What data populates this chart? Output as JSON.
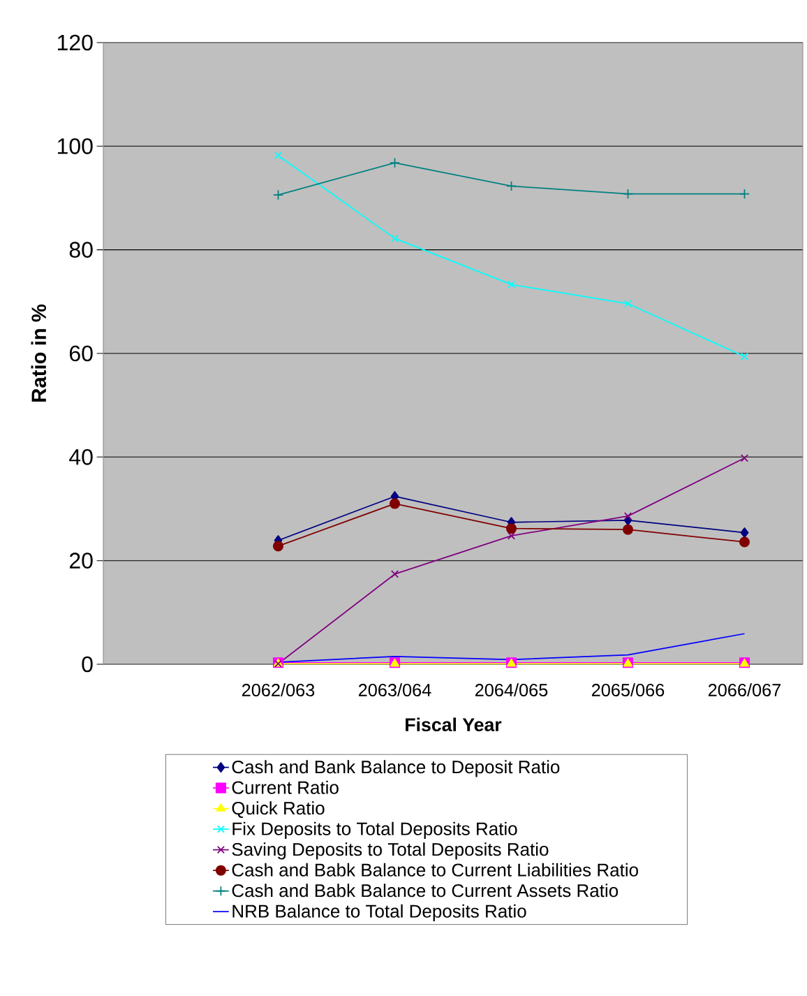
{
  "chart_data": {
    "type": "line",
    "xlabel": "Fiscal Year",
    "ylabel": "Ratio in %",
    "categories": [
      null,
      "2062/063",
      "2063/064",
      "2064/065",
      "2065/066",
      "2066/067"
    ],
    "ylim": [
      0,
      120
    ],
    "yticks": [
      0,
      20,
      40,
      60,
      80,
      100,
      120
    ],
    "grid": "y",
    "legend": "bottom",
    "series": [
      {
        "name": "Cash and Bank Balance to Deposit Ratio",
        "color": "#000080",
        "marker": "diamond",
        "values": [
          null,
          23.9,
          32.4,
          27.4,
          27.8,
          25.4
        ]
      },
      {
        "name": "Current Ratio",
        "color": "#ff00ff",
        "marker": "square",
        "values": [
          null,
          0.3,
          0.3,
          0.3,
          0.3,
          0.3
        ]
      },
      {
        "name": "Quick Ratio",
        "color": "#ffff00",
        "marker": "triangle",
        "values": [
          null,
          0.1,
          0.1,
          0.1,
          0.1,
          0.1
        ]
      },
      {
        "name": "Fix Deposits to Total Deposits Ratio",
        "color": "#00ffff",
        "marker": "cross",
        "values": [
          null,
          98.2,
          82.2,
          73.3,
          69.6,
          59.4
        ]
      },
      {
        "name": "Saving Deposits to Total Deposits Ratio",
        "color": "#800080",
        "marker": "cross",
        "values": [
          null,
          0.1,
          17.4,
          24.8,
          28.6,
          39.8
        ]
      },
      {
        "name": "Cash and Babk Balance to Current Liabilities Ratio",
        "color": "#800000",
        "marker": "circle",
        "values": [
          null,
          22.8,
          31.0,
          26.2,
          26.0,
          23.6
        ]
      },
      {
        "name": "Cash and Babk Balance to Current Assets Ratio",
        "color": "#008080",
        "marker": "plus",
        "values": [
          null,
          90.6,
          96.8,
          92.3,
          90.8,
          90.8
        ]
      },
      {
        "name": "NRB Balance to Total Deposits Ratio",
        "color": "#0000ff",
        "marker": "none",
        "values": [
          null,
          0.4,
          1.5,
          0.9,
          1.8,
          5.9
        ]
      }
    ]
  }
}
